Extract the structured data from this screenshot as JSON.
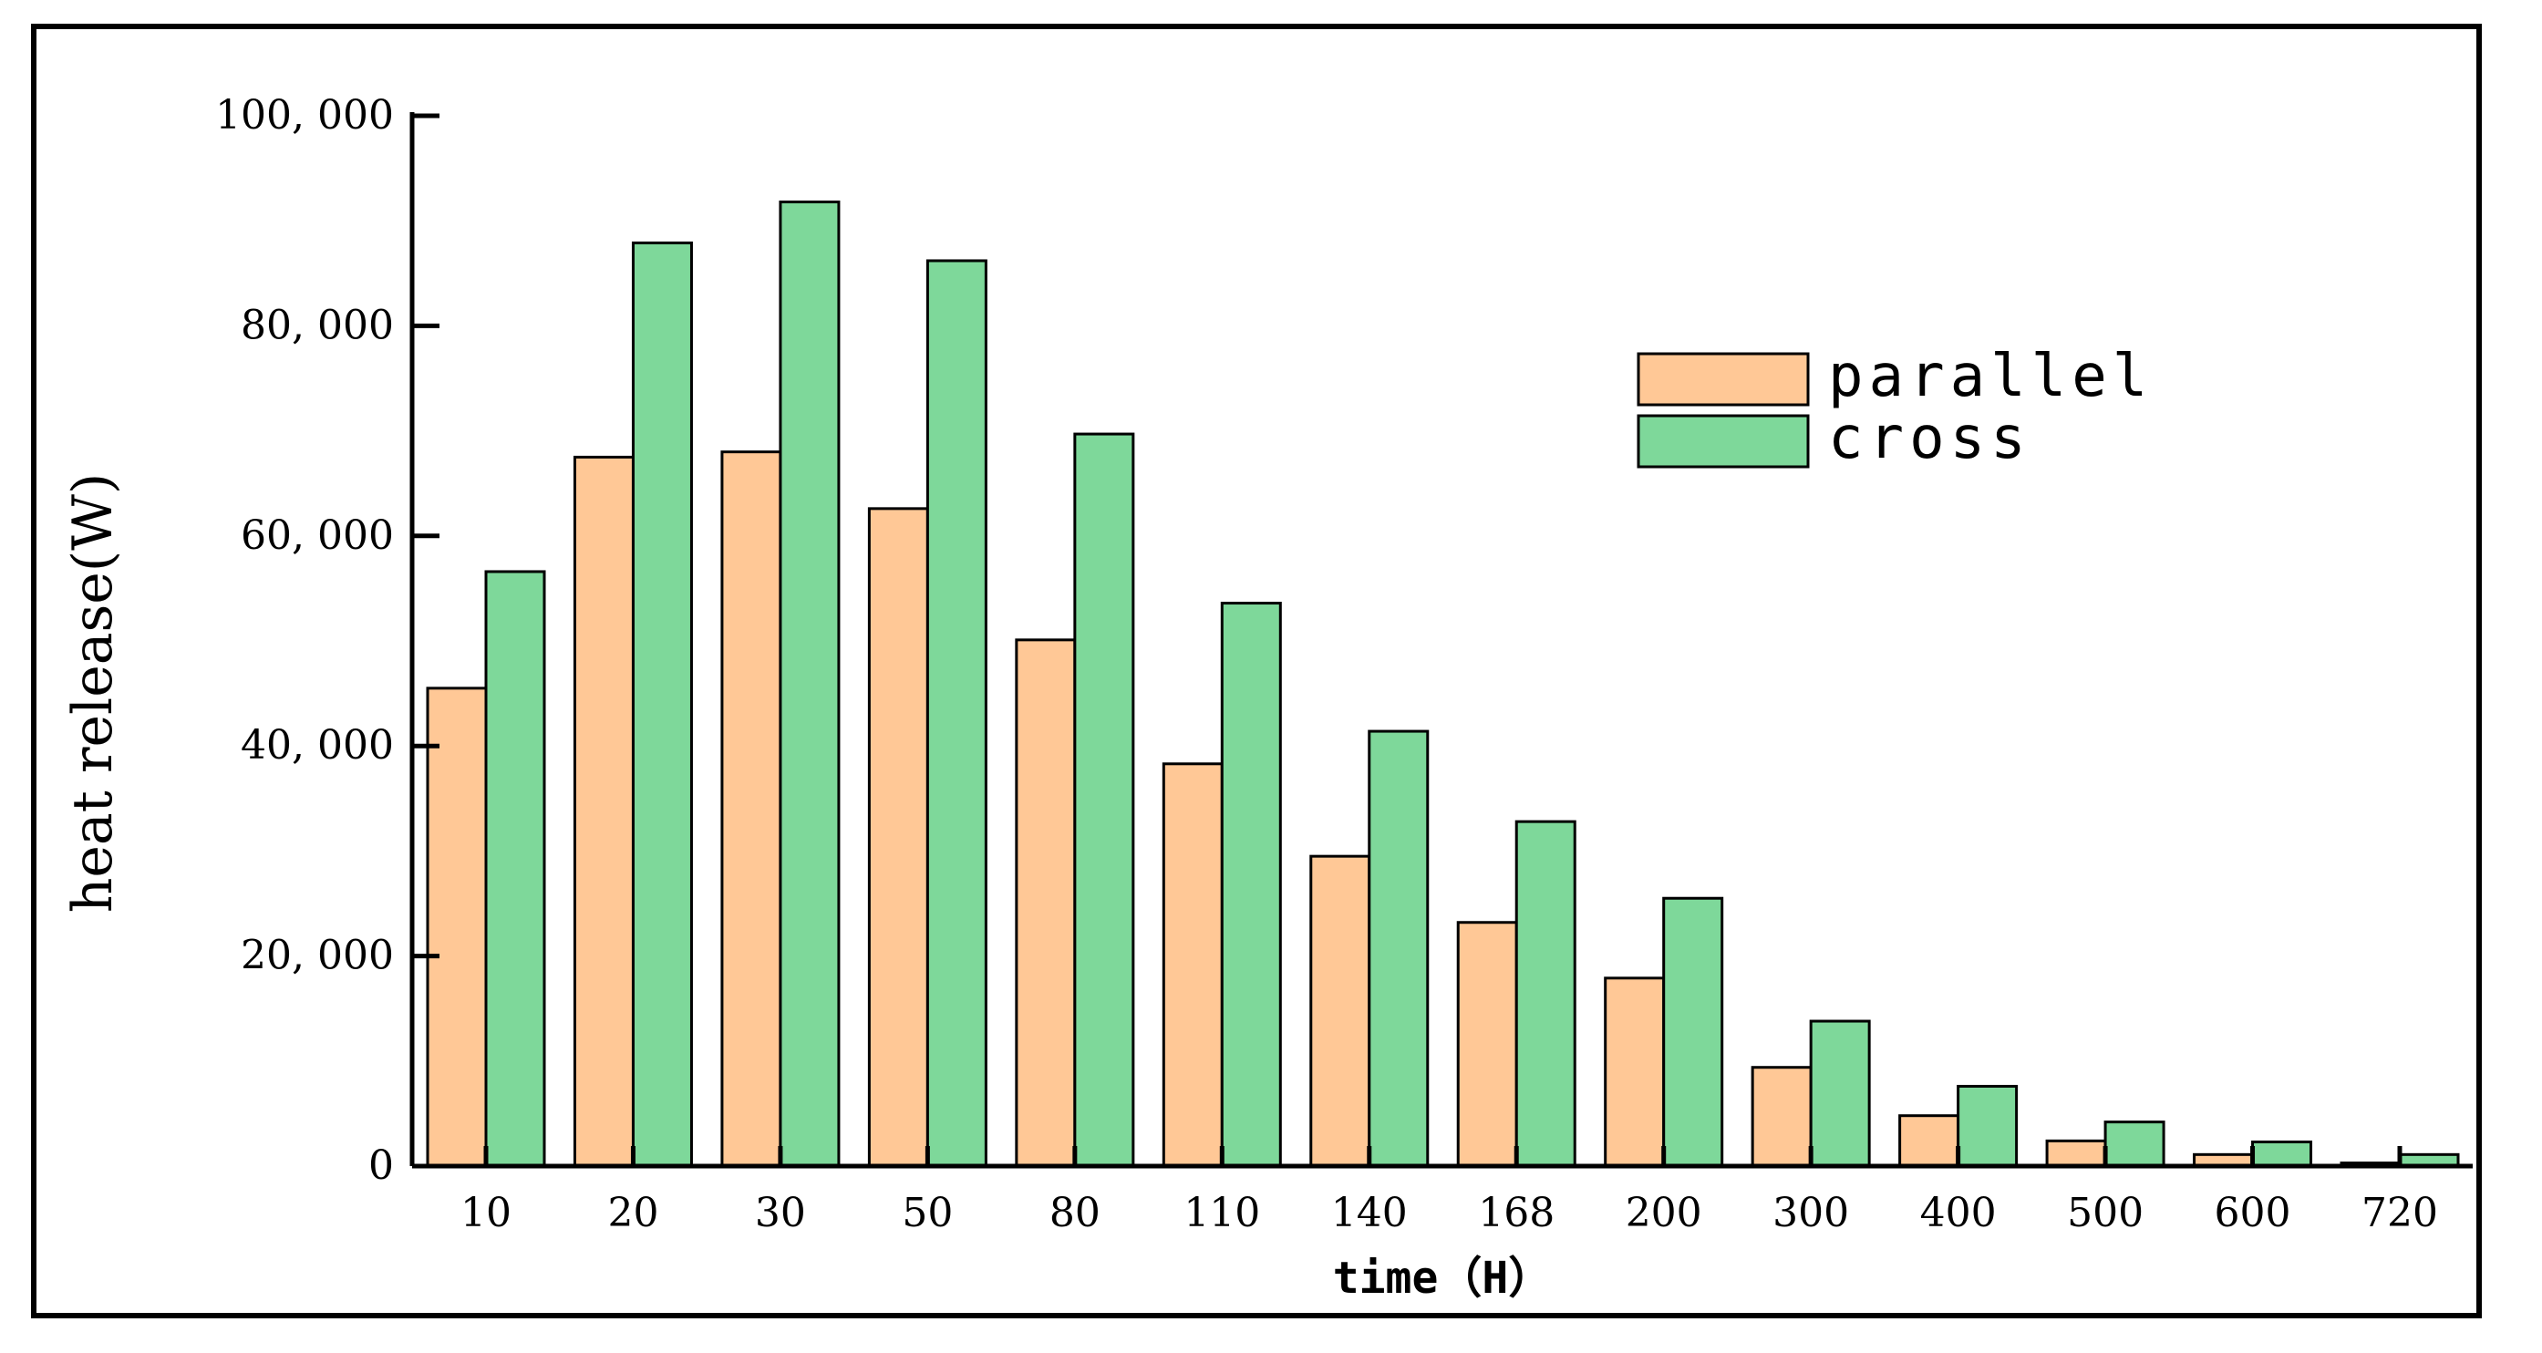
{
  "chart_data": {
    "type": "bar",
    "xlabel": "time（H）",
    "ylabel": "heat release(W)",
    "categories": [
      "10",
      "20",
      "30",
      "50",
      "80",
      "110",
      "140",
      "168",
      "200",
      "300",
      "400",
      "500",
      "600",
      "720"
    ],
    "ylim": [
      0,
      100000
    ],
    "yticks": [
      0,
      20000,
      40000,
      60000,
      80000,
      100000
    ],
    "ytick_labels": [
      "0",
      "20, 000",
      "40, 000",
      "60, 000",
      "80, 000",
      "100, 000"
    ],
    "grid": false,
    "legend_position": "top-right",
    "series": [
      {
        "name": "parallel",
        "color": "#FFC896",
        "values": [
          45500,
          67500,
          68000,
          62600,
          50100,
          38300,
          29500,
          23200,
          17900,
          9400,
          4800,
          2400,
          1100,
          300
        ]
      },
      {
        "name": "cross",
        "color": "#7ED89A",
        "values": [
          56600,
          87900,
          91800,
          86200,
          69700,
          53600,
          41400,
          32800,
          25500,
          13800,
          7600,
          4200,
          2300,
          1100
        ]
      }
    ]
  }
}
